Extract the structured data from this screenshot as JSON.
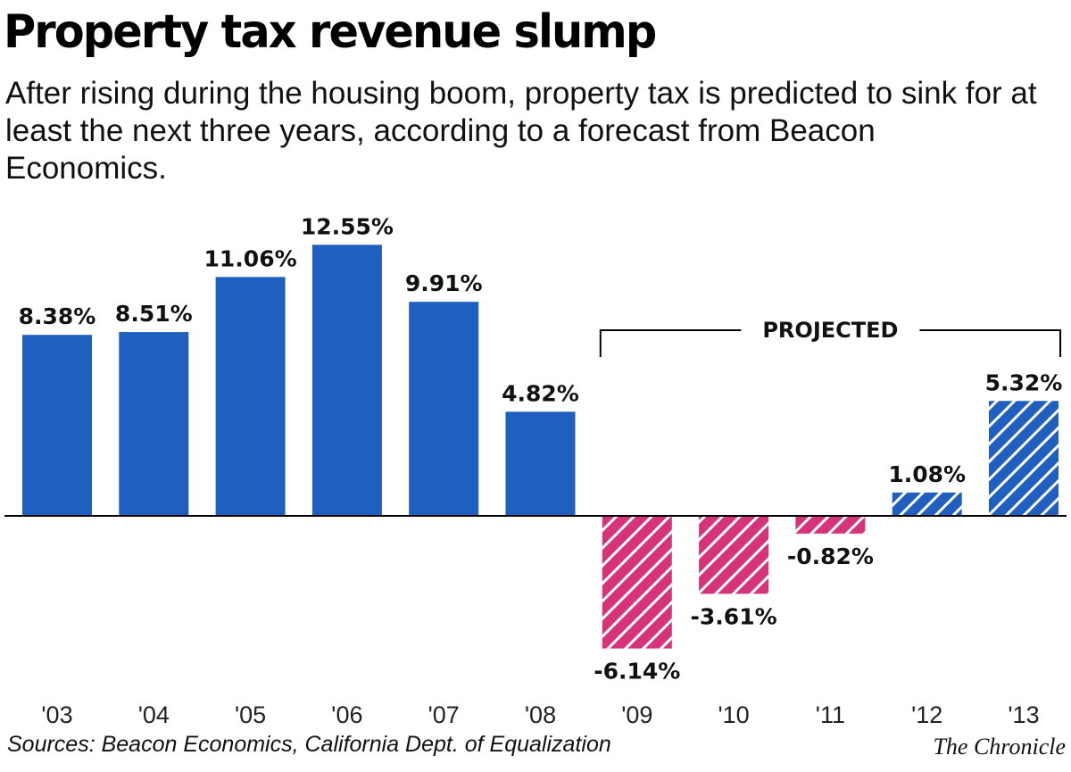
{
  "title": "Property tax revenue slump",
  "subtitle": "After rising during the housing boom, property tax is predicted to sink for at least the next three years, according to a forecast from Beacon Economics.",
  "source": "Sources: Beacon Economics, California Dept. of Equalization",
  "credit": "The Chronicle",
  "chart_data": {
    "type": "bar",
    "title": "Property tax revenue slump",
    "categories": [
      "'03",
      "'04",
      "'05",
      "'06",
      "'07",
      "'08",
      "'09",
      "'10",
      "'11",
      "'12",
      "'13"
    ],
    "values": [
      8.38,
      8.51,
      11.06,
      12.55,
      9.91,
      4.82,
      -6.14,
      -3.61,
      -0.82,
      1.08,
      5.32
    ],
    "value_labels": [
      "8.38%",
      "8.51%",
      "11.06%",
      "12.55%",
      "9.91%",
      "4.82%",
      "-6.14%",
      "-3.61%",
      "-0.82%",
      "1.08%",
      "5.32%"
    ],
    "projected": [
      false,
      false,
      false,
      false,
      false,
      false,
      true,
      true,
      true,
      true,
      true
    ],
    "projected_label": "PROJECTED",
    "unit": "%",
    "ylim": [
      -7,
      13
    ],
    "grid": false,
    "colors": {
      "positive": "#1f5fbf",
      "negative": "#d6337a",
      "hatch_stripe": "#ffffff"
    }
  }
}
